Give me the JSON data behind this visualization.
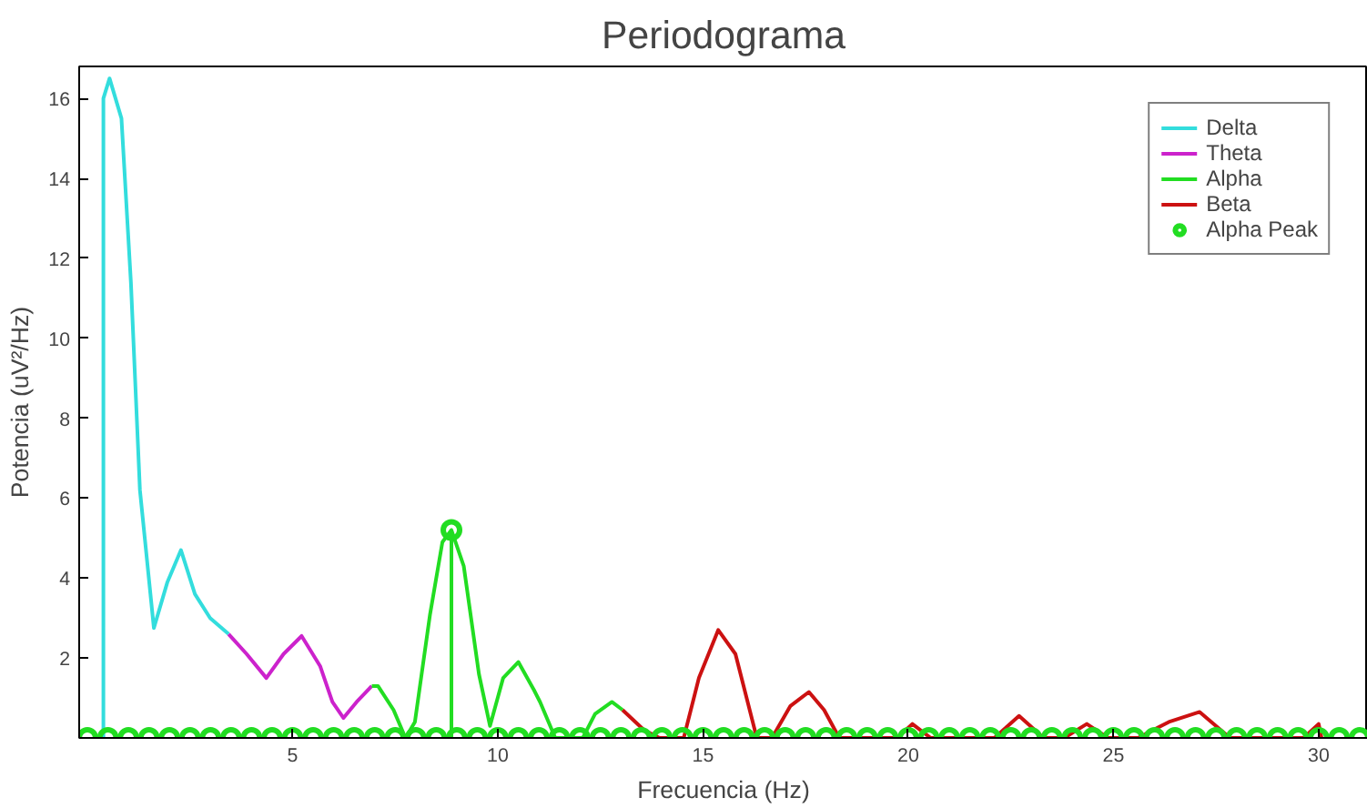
{
  "chart_data": {
    "type": "line",
    "title": "Periodograma",
    "xlabel": "Frecuencia (Hz)",
    "ylabel": "Potencia (uV²/Hz)",
    "xlim": [
      -0.2,
      31.2
    ],
    "ylim": [
      0,
      16.8
    ],
    "xticks": [
      5,
      10,
      15,
      20,
      25,
      30
    ],
    "yticks": [
      2,
      4,
      6,
      8,
      10,
      12,
      14,
      16
    ],
    "grid": false,
    "legend": "top right",
    "series": [
      {
        "name": "Delta",
        "color": "#33dddd",
        "x": [
          0.39,
          0.39,
          0.54,
          0.83,
          1.06,
          1.28,
          1.62,
          1.95,
          2.28,
          2.62,
          2.99,
          3.44
        ],
        "values": [
          0,
          16,
          16.5,
          15.5,
          11.4,
          6.2,
          2.75,
          3.9,
          4.7,
          3.6,
          3.0,
          2.6
        ]
      },
      {
        "name": "Theta",
        "color": "#cc22cc",
        "x": [
          3.44,
          3.88,
          4.36,
          4.78,
          5.22,
          5.67,
          5.97,
          6.24,
          6.56,
          6.93
        ],
        "values": [
          2.6,
          2.1,
          1.5,
          2.1,
          2.55,
          1.8,
          0.9,
          0.5,
          0.9,
          1.3
        ]
      },
      {
        "name": "Alpha",
        "color": "#22dd22",
        "x": [
          6.93,
          7.08,
          7.46,
          7.75,
          7.98,
          8.35,
          8.65,
          8.87,
          8.87,
          8.87,
          9.17,
          9.54,
          9.81,
          10.13,
          10.5,
          10.88,
          11.03,
          11.4,
          12.07,
          12.37,
          12.78,
          13.04
        ],
        "values": [
          1.3,
          1.3,
          0.7,
          0,
          0.4,
          3.1,
          4.9,
          5.2,
          0,
          5.2,
          4.3,
          1.6,
          0.3,
          1.5,
          1.9,
          1.2,
          0.9,
          0,
          0,
          0.6,
          0.9,
          0.7
        ]
      },
      {
        "name": "Beta",
        "color": "#cc1111",
        "x": [
          13.04,
          13.56,
          13.94,
          14.53,
          14.9,
          15.37,
          15.79,
          16.31,
          16.68,
          17.13,
          17.58,
          17.95,
          18.32,
          19.73,
          20.1,
          20.55,
          22.1,
          22.7,
          23.3,
          23.8,
          24.35,
          24.87,
          25.6,
          26.35,
          27.1,
          27.84,
          29.63,
          30.0,
          30.07
        ],
        "values": [
          0.7,
          0.2,
          0,
          0,
          1.5,
          2.7,
          2.1,
          0,
          0,
          0.8,
          1.15,
          0.7,
          0,
          0,
          0.35,
          0,
          0,
          0.55,
          0,
          0,
          0.35,
          0,
          0,
          0.4,
          0.65,
          0,
          0,
          0.35,
          0
        ]
      },
      {
        "name": "Alpha Peak",
        "type": "scatter",
        "marker": "circle",
        "color": "#22dd22",
        "x": [
          8.87,
          0,
          0.5,
          1,
          1.5,
          2,
          2.5,
          3,
          3.5,
          4,
          4.5,
          5,
          5.5,
          6,
          6.5,
          7,
          7.5,
          8,
          8.5,
          9,
          9.5,
          10,
          10.5,
          11,
          11.5,
          12,
          12.5,
          13,
          13.5,
          14,
          14.5,
          15,
          15.5,
          16,
          16.5,
          17,
          17.5,
          18,
          18.5,
          19,
          19.5,
          20,
          20.5,
          21,
          21.5,
          22,
          22.5,
          23,
          23.5,
          24,
          24.5,
          25,
          25.5,
          26,
          26.5,
          27,
          27.5,
          28,
          28.5,
          29,
          29.5,
          30,
          30.5,
          31
        ],
        "values": [
          5.2,
          0,
          0,
          0,
          0,
          0,
          0,
          0,
          0,
          0,
          0,
          0,
          0,
          0,
          0,
          0,
          0,
          0,
          0,
          0,
          0,
          0,
          0,
          0,
          0,
          0,
          0,
          0,
          0,
          0,
          0,
          0,
          0,
          0,
          0,
          0,
          0,
          0,
          0,
          0,
          0,
          0,
          0,
          0,
          0,
          0,
          0,
          0,
          0,
          0,
          0,
          0,
          0,
          0,
          0,
          0,
          0,
          0,
          0,
          0,
          0,
          0,
          0,
          0
        ]
      }
    ]
  }
}
